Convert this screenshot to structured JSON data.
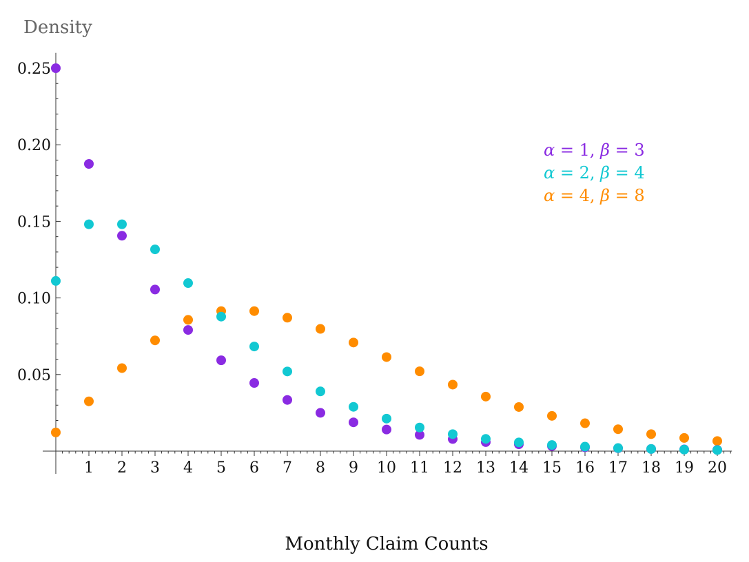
{
  "chart_data": {
    "type": "scatter",
    "title": "",
    "xlabel": "Monthly Claim Counts",
    "ylabel": "Density",
    "x": [
      0,
      1,
      2,
      3,
      4,
      5,
      6,
      7,
      8,
      9,
      10,
      11,
      12,
      13,
      14,
      15,
      16,
      17,
      18,
      19,
      20
    ],
    "xticks": [
      "1",
      "2",
      "3",
      "4",
      "5",
      "6",
      "7",
      "8",
      "9",
      "10",
      "11",
      "12",
      "13",
      "14",
      "15",
      "16",
      "17",
      "18",
      "19",
      "20"
    ],
    "xtick_values": [
      1,
      2,
      3,
      4,
      5,
      6,
      7,
      8,
      9,
      10,
      11,
      12,
      13,
      14,
      15,
      16,
      17,
      18,
      19,
      20
    ],
    "yticks": [
      "0.05",
      "0.10",
      "0.15",
      "0.20",
      "0.25"
    ],
    "ytick_values": [
      0.05,
      0.1,
      0.15,
      0.2,
      0.25
    ],
    "xlim": [
      0,
      20.4
    ],
    "ylim": [
      0,
      0.26
    ],
    "grid": false,
    "legend_position": "top-right",
    "series": [
      {
        "name": "α = 1, β = 3",
        "name_parts": {
          "a": "α",
          "a_val": " = 1, ",
          "b": "β",
          "b_val": " = 3"
        },
        "color": "#8a2be2",
        "values": [
          0.25,
          0.1875,
          0.1406,
          0.1055,
          0.0791,
          0.0593,
          0.0445,
          0.0334,
          0.025,
          0.0188,
          0.0141,
          0.0106,
          0.0079,
          0.0059,
          0.0045,
          0.0033,
          0.0025,
          0.0019,
          0.0014,
          0.0011,
          0.0008
        ]
      },
      {
        "name": "α = 2, β = 4",
        "name_parts": {
          "a": "α",
          "a_val": " = 2, ",
          "b": "β",
          "b_val": " = 4"
        },
        "color": "#12c8d2",
        "values": [
          0.1111,
          0.1481,
          0.1481,
          0.1317,
          0.1097,
          0.0878,
          0.0683,
          0.052,
          0.039,
          0.0289,
          0.0212,
          0.0154,
          0.0111,
          0.008,
          0.0057,
          0.004,
          0.0029,
          0.002,
          0.0014,
          0.001,
          0.0007
        ]
      },
      {
        "name": "α = 4, β = 8",
        "name_parts": {
          "a": "α",
          "a_val": " = 4, ",
          "b": "β",
          "b_val": " = 8"
        },
        "color": "#ff8c00",
        "values": [
          0.0122,
          0.0325,
          0.0542,
          0.0723,
          0.0857,
          0.0914,
          0.0914,
          0.0871,
          0.0798,
          0.0709,
          0.0614,
          0.0521,
          0.0434,
          0.0356,
          0.0288,
          0.023,
          0.0182,
          0.0143,
          0.0111,
          0.0086,
          0.0066
        ]
      }
    ]
  }
}
